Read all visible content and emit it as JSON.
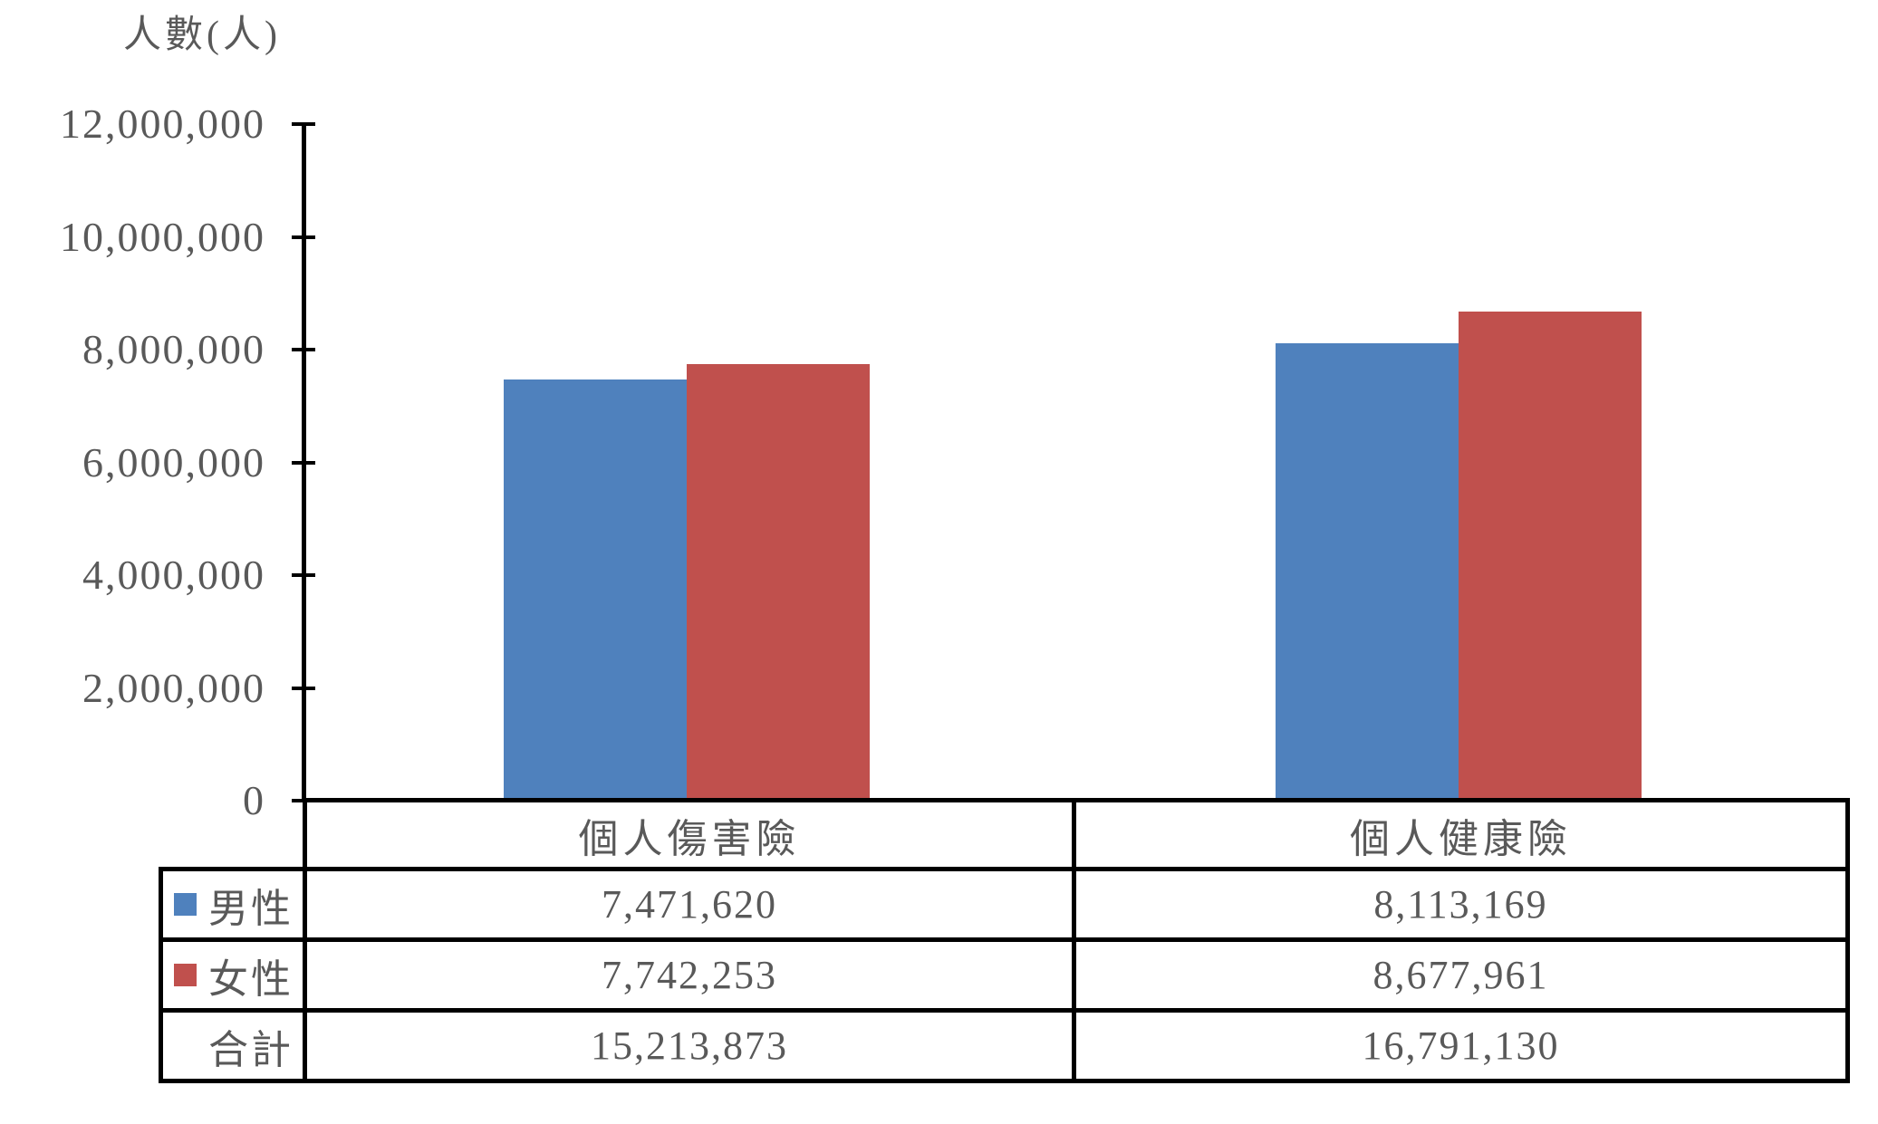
{
  "chart_data": {
    "type": "bar",
    "y_axis_title": "人數(人)",
    "categories": [
      "個人傷害險",
      "個人健康險"
    ],
    "series": [
      {
        "name": "男性",
        "color": "#4F81BD",
        "values": [
          7471620,
          8113169
        ]
      },
      {
        "name": "女性",
        "color": "#C0504D",
        "values": [
          7742253,
          8677961
        ]
      }
    ],
    "totals_row": {
      "label": "合計",
      "values": [
        15213873,
        16791130
      ]
    },
    "ylim": [
      0,
      12000000
    ],
    "ytick_step": 2000000,
    "ytick_labels": [
      "0",
      "2,000,000",
      "4,000,000",
      "6,000,000",
      "8,000,000",
      "10,000,000",
      "12,000,000"
    ],
    "grid": false,
    "legend_position": "left-of-table-rows"
  },
  "table": {
    "column_headers": [
      "個人傷害險",
      "個人健康險"
    ],
    "rows": [
      {
        "label": "男性",
        "swatch_color": "#4F81BD",
        "cells": [
          "7,471,620",
          "8,113,169"
        ]
      },
      {
        "label": "女性",
        "swatch_color": "#C0504D",
        "cells": [
          "7,742,253",
          "8,677,961"
        ]
      },
      {
        "label": "合計",
        "swatch_color": null,
        "cells": [
          "15,213,873",
          "16,791,130"
        ]
      }
    ]
  },
  "colors": {
    "bar_male": "#4F81BD",
    "bar_female": "#C0504D",
    "axis_line": "#000000",
    "table_border": "#000000",
    "text": "#595959",
    "background": "#FFFFFF"
  }
}
